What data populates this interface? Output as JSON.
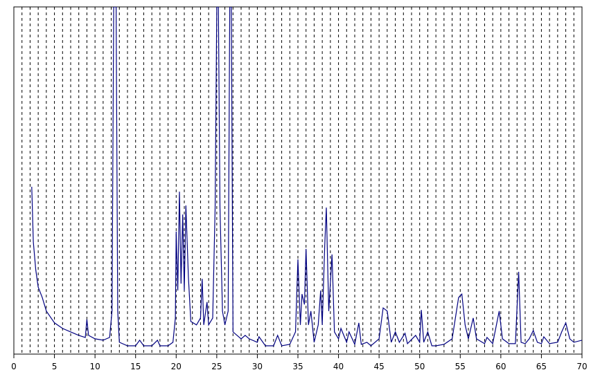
{
  "chart_data": {
    "type": "line",
    "x": [
      2.2,
      2.4,
      2.7,
      3.0,
      3.5,
      4.0,
      5,
      6,
      7,
      8,
      8.8,
      9.0,
      9.2,
      10,
      11,
      11.8,
      12.1,
      12.3,
      12.6,
      12.8,
      13,
      14,
      15,
      15.5,
      16,
      17,
      17.7,
      18,
      19,
      19.6,
      19.9,
      20.0,
      20.2,
      20.4,
      20.6,
      20.8,
      21.0,
      21.2,
      21.5,
      21.8,
      22.5,
      23.0,
      23.2,
      23.4,
      23.8,
      24.0,
      24.5,
      24.8,
      25.0,
      25.2,
      25.4,
      25.7,
      26.0,
      26.4,
      26.6,
      26.8,
      27.0,
      28,
      28.5,
      29,
      30,
      30.2,
      31,
      32,
      32.5,
      33,
      34,
      34.7,
      35.0,
      35.3,
      35.5,
      35.8,
      36.0,
      36.3,
      36.6,
      37.0,
      37.5,
      37.8,
      38.0,
      38.3,
      38.5,
      38.8,
      39.2,
      39.5,
      40,
      40.3,
      41,
      41.3,
      42,
      42.5,
      42.8,
      43.5,
      44,
      45,
      45.5,
      46,
      46.5,
      47,
      47.5,
      48.2,
      48.5,
      49.5,
      50,
      50.2,
      50.5,
      51,
      51.5,
      52,
      53,
      54,
      54.8,
      55.2,
      55.6,
      56,
      56.6,
      57,
      58,
      58.3,
      59,
      59.8,
      60.2,
      61,
      61.8,
      62.2,
      62.5,
      63,
      63.5,
      64,
      64.5,
      65,
      65.3,
      66,
      67,
      67.5,
      68,
      68.5,
      69,
      70
    ],
    "series": [
      {
        "color": "#000080",
        "values": [
          48.2,
          32.3,
          24.3,
          19.3,
          16.3,
          12.4,
          9.0,
          7.4,
          6.4,
          5.4,
          4.8,
          10.0,
          5.4,
          4.4,
          4.0,
          4.8,
          12.4,
          100,
          100,
          12.4,
          3.4,
          2.4,
          2.4,
          4.0,
          2.4,
          2.4,
          4.0,
          2.4,
          2.4,
          3.4,
          10.4,
          35.3,
          18.3,
          46.8,
          20.3,
          40.2,
          18.3,
          42.8,
          22.3,
          9.4,
          8.4,
          10.4,
          21.7,
          8.4,
          15.0,
          8.4,
          10.4,
          42.2,
          100,
          100,
          42.2,
          12.4,
          8.4,
          12.4,
          100,
          100,
          6.4,
          4.4,
          5.4,
          4.4,
          3.4,
          5.0,
          2.4,
          2.4,
          5.4,
          2.4,
          2.8,
          6.4,
          27.3,
          8.4,
          17.3,
          14.3,
          30.3,
          8.4,
          12.4,
          3.4,
          8.4,
          18.3,
          8.4,
          31.3,
          42.2,
          12.4,
          28.7,
          6.4,
          4.4,
          7.4,
          3.4,
          6.4,
          2.8,
          9.0,
          2.8,
          3.4,
          2.4,
          4.4,
          13.3,
          12.4,
          3.4,
          6.4,
          3.4,
          6.0,
          3.0,
          5.4,
          3.4,
          12.7,
          3.4,
          6.4,
          2.4,
          2.4,
          2.8,
          4.4,
          16.3,
          17.3,
          8.4,
          4.4,
          10.4,
          4.4,
          3.0,
          4.8,
          3.0,
          12.4,
          4.4,
          3.0,
          3.0,
          23.7,
          3.4,
          3.0,
          4.4,
          6.8,
          3.4,
          3.0,
          5.0,
          3.0,
          3.4,
          6.4,
          9.0,
          4.4,
          3.4,
          4.0
        ]
      }
    ],
    "xlim": [
      0,
      70
    ],
    "ylim": [
      0,
      100
    ],
    "xticks": [
      0,
      5,
      10,
      15,
      20,
      25,
      30,
      35,
      40,
      45,
      50,
      55,
      60,
      65,
      70
    ],
    "reference_lines": [
      1,
      2,
      3,
      4,
      5,
      6,
      7,
      8,
      9,
      10,
      11,
      12,
      13,
      14,
      15,
      16,
      17,
      18,
      19,
      20,
      21,
      22,
      23,
      24,
      25,
      26,
      27,
      28,
      29,
      30,
      31,
      32,
      33,
      34,
      35,
      36,
      37,
      38,
      39,
      40,
      41,
      42,
      43,
      44,
      45,
      46,
      47,
      48,
      49,
      50,
      51,
      52,
      53,
      54,
      55,
      56,
      57,
      58,
      59,
      60,
      61,
      62,
      63,
      64,
      65,
      66,
      67,
      68,
      69
    ]
  }
}
